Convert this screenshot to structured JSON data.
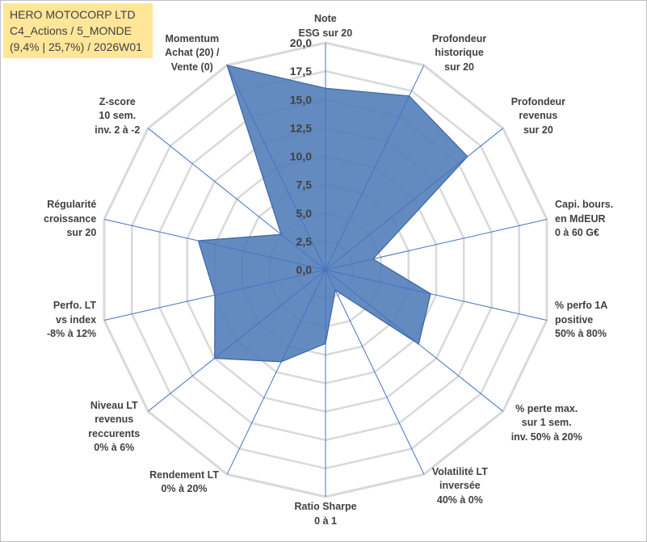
{
  "title": {
    "lines": [
      "HERO MOTOCORP LTD",
      "C4_Actions / 5_MONDE",
      "(9,4% | 25,7%) / 2026W01"
    ],
    "background": "#ffe699"
  },
  "chart_data": {
    "type": "radar",
    "categories": [
      [
        "Note",
        "ESG sur 20"
      ],
      [
        "Profondeur",
        "historique",
        "sur 20"
      ],
      [
        "Profondeur",
        "revenus",
        "sur 20"
      ],
      [
        "Capi. bours.",
        "en MdEUR",
        "0 à 60 G€"
      ],
      [
        "% perfo 1A",
        "positive",
        "50% à 80%"
      ],
      [
        "% perte max.",
        "sur 1 sem.",
        "inv. 50% à 20%"
      ],
      [
        "Volatilité LT",
        "inversée",
        "40% à 0%"
      ],
      [
        "Ratio Sharpe",
        "0 à 1"
      ],
      [
        "Rendement LT",
        "0% à 20%"
      ],
      [
        "Niveau LT",
        "revenus",
        "reccurents",
        "0% à 6%"
      ],
      [
        "Perfo. LT",
        "vs index",
        "-8% à 12%"
      ],
      [
        "Régularité",
        "croissance",
        "sur 20"
      ],
      [
        "Z-score",
        "10 sem.",
        "inv. 2 à -2"
      ],
      [
        "Momentum",
        "Achat (20) /",
        "Vente (0)"
      ]
    ],
    "series": [
      {
        "values": [
          16.0,
          17.0,
          16.0,
          4.3,
          9.5,
          10.5,
          2.0,
          6.5,
          9.0,
          12.5,
          10.0,
          11.5,
          5.0,
          20.0
        ]
      }
    ],
    "r_range": [
      0,
      20
    ],
    "r_ticks": [
      "0,0",
      "2,5",
      "5,0",
      "7,5",
      "10,0",
      "12,5",
      "15,0",
      "17,5",
      "20,0"
    ],
    "grid": true,
    "legend": "none",
    "colors": {
      "fill": "#4f7bb7",
      "stroke": "#3c64a0",
      "grid": "#d9d9d9",
      "spoke": "#4472c4",
      "text": "#404040"
    }
  }
}
